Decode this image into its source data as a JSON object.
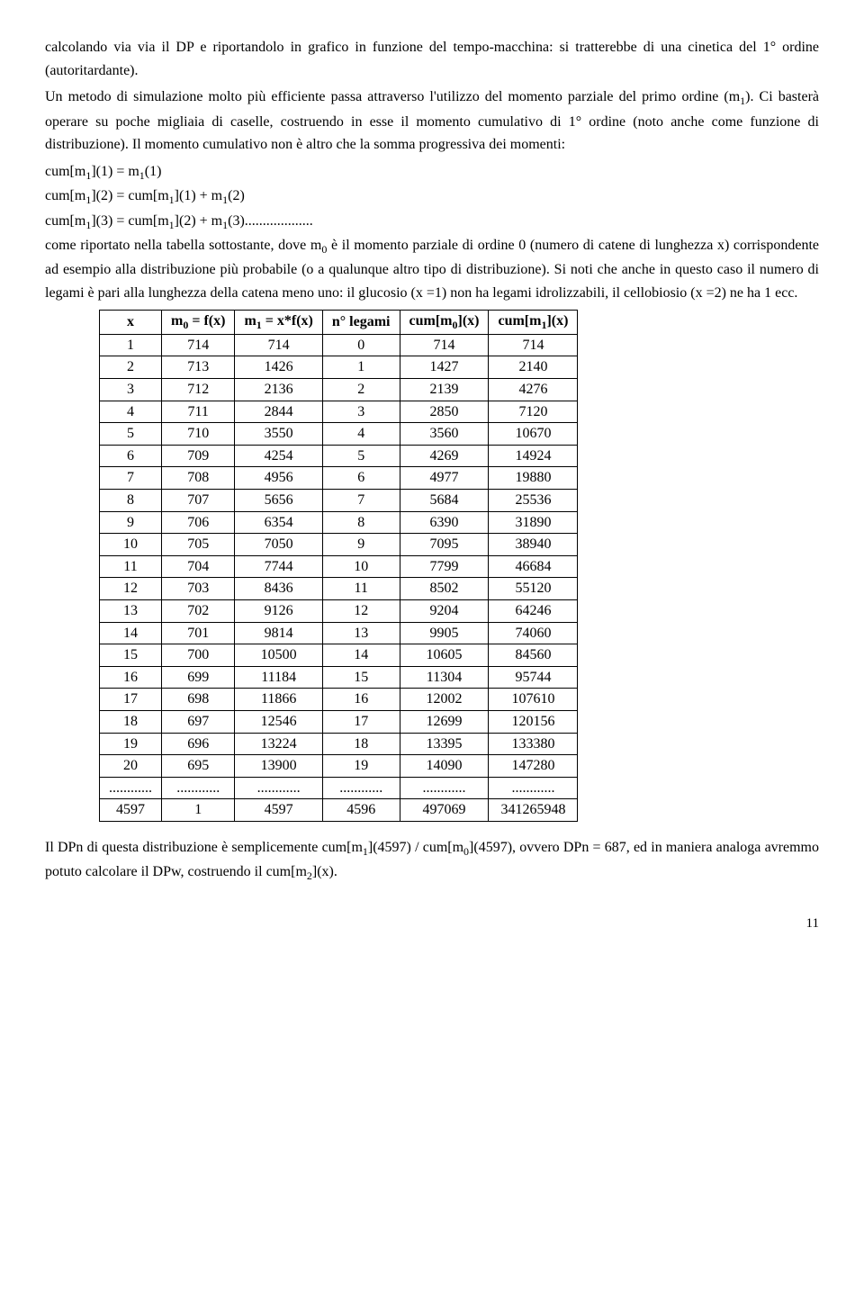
{
  "para1": "calcolando via via il DP e riportandolo in grafico in funzione del tempo-macchina: si tratterebbe di una cinetica del 1° ordine (autoritardante).",
  "para2_a": "Un metodo di simulazione molto più efficiente passa attraverso l'utilizzo del momento parziale del primo ordine (m",
  "para2_b": "). Ci basterà operare su poche migliaia di caselle, costruendo in esse il momento cumulativo di 1° ordine (noto anche come funzione di distribuzione). Il momento cumulativo non è altro che la somma progressiva dei momenti:",
  "eq1_a": "cum[m",
  "eq1_b": "](1) = m",
  "eq1_c": "(1)",
  "eq2_a": "cum[m",
  "eq2_b": "](2) = cum[m",
  "eq2_c": "](1) + m",
  "eq2_d": "(2)",
  "eq3_a": "cum[m",
  "eq3_b": "](3) = cum[m",
  "eq3_c": "](2) + m",
  "eq3_d": "(3)...................",
  "para3_a": "come riportato nella tabella sottostante, dove m",
  "para3_b": " è il momento parziale di ordine 0 (numero di catene di lunghezza x) corrispondente ad esempio alla distribuzione più probabile (o a qualunque altro tipo di distribuzione). Si noti che anche in questo caso il numero di legami è pari alla lunghezza della catena meno uno: il glucosio (x =1) non ha legami idrolizzabili, il cellobiosio (x =2) ne ha 1 ecc.",
  "table": {
    "headers": {
      "c1": "x",
      "c2_a": "m",
      "c2_b": " = f(x)",
      "c3_a": "m",
      "c3_b": " = x*f(x)",
      "c4": "n° legami",
      "c5_a": "cum[m",
      "c5_b": "](x)",
      "c6_a": "cum[m",
      "c6_b": "](x)"
    },
    "rows": [
      [
        "1",
        "714",
        "714",
        "0",
        "714",
        "714"
      ],
      [
        "2",
        "713",
        "1426",
        "1",
        "1427",
        "2140"
      ],
      [
        "3",
        "712",
        "2136",
        "2",
        "2139",
        "4276"
      ],
      [
        "4",
        "711",
        "2844",
        "3",
        "2850",
        "7120"
      ],
      [
        "5",
        "710",
        "3550",
        "4",
        "3560",
        "10670"
      ],
      [
        "6",
        "709",
        "4254",
        "5",
        "4269",
        "14924"
      ],
      [
        "7",
        "708",
        "4956",
        "6",
        "4977",
        "19880"
      ],
      [
        "8",
        "707",
        "5656",
        "7",
        "5684",
        "25536"
      ],
      [
        "9",
        "706",
        "6354",
        "8",
        "6390",
        "31890"
      ],
      [
        "10",
        "705",
        "7050",
        "9",
        "7095",
        "38940"
      ],
      [
        "11",
        "704",
        "7744",
        "10",
        "7799",
        "46684"
      ],
      [
        "12",
        "703",
        "8436",
        "11",
        "8502",
        "55120"
      ],
      [
        "13",
        "702",
        "9126",
        "12",
        "9204",
        "64246"
      ],
      [
        "14",
        "701",
        "9814",
        "13",
        "9905",
        "74060"
      ],
      [
        "15",
        "700",
        "10500",
        "14",
        "10605",
        "84560"
      ],
      [
        "16",
        "699",
        "11184",
        "15",
        "11304",
        "95744"
      ],
      [
        "17",
        "698",
        "11866",
        "16",
        "12002",
        "107610"
      ],
      [
        "18",
        "697",
        "12546",
        "17",
        "12699",
        "120156"
      ],
      [
        "19",
        "696",
        "13224",
        "18",
        "13395",
        "133380"
      ],
      [
        "20",
        "695",
        "13900",
        "19",
        "14090",
        "147280"
      ],
      [
        "............",
        "............",
        "............",
        "............",
        "............",
        "............"
      ],
      [
        "4597",
        "1",
        "4597",
        "4596",
        "497069",
        "341265948"
      ]
    ]
  },
  "para4_a": "Il DPn di questa distribuzione è semplicemente cum[m",
  "para4_b": "](4597) / cum[m",
  "para4_c": "](4597), ovvero DPn = 687, ed in maniera analoga avremmo potuto calcolare il DPw, costruendo il cum[m",
  "para4_d": "](x).",
  "page_number": "11"
}
